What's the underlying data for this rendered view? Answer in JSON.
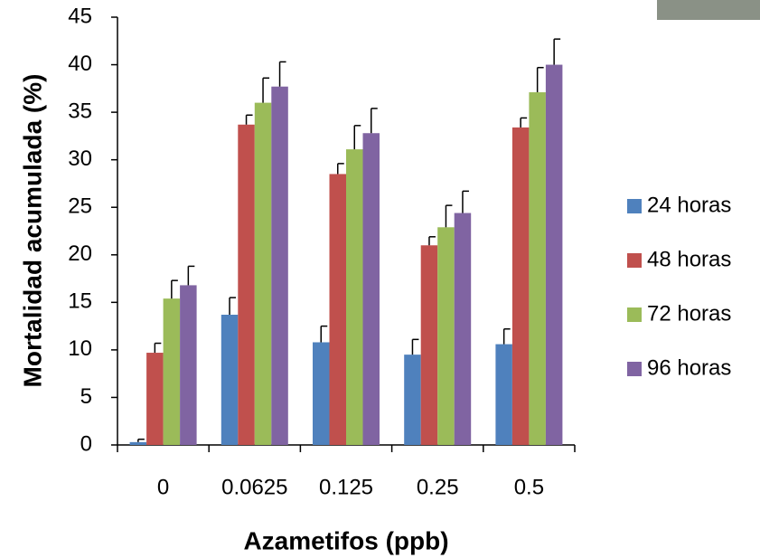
{
  "chart_data": {
    "type": "bar",
    "xlabel": "Azametifos (ppb)",
    "ylabel": "Mortalidad acumulada (%)",
    "categories": [
      "0",
      "0.0625",
      "0.125",
      "0.25",
      "0.5"
    ],
    "series": [
      {
        "name": "24 horas",
        "color": "#4f81bd",
        "values": [
          0.3,
          13.7,
          10.8,
          9.5,
          10.6
        ],
        "errors": [
          0.3,
          1.8,
          1.7,
          1.6,
          1.6
        ]
      },
      {
        "name": "48 horas",
        "color": "#c0504d",
        "values": [
          9.7,
          33.7,
          28.5,
          21.0,
          33.4
        ],
        "errors": [
          1.0,
          1.0,
          1.1,
          0.9,
          1.0
        ]
      },
      {
        "name": "72 horas",
        "color": "#9bbb59",
        "values": [
          15.4,
          36.0,
          31.1,
          22.9,
          37.1
        ],
        "errors": [
          1.9,
          2.6,
          2.5,
          2.3,
          2.6
        ]
      },
      {
        "name": "96 horas",
        "color": "#8064a2",
        "values": [
          16.8,
          37.7,
          32.8,
          24.4,
          40.0
        ],
        "errors": [
          2.0,
          2.6,
          2.6,
          2.3,
          2.7
        ]
      }
    ],
    "ylim": [
      0,
      45
    ],
    "yticks": [
      0,
      5,
      10,
      15,
      20,
      25,
      30,
      35,
      40,
      45
    ],
    "grid": false,
    "legend": "right"
  }
}
